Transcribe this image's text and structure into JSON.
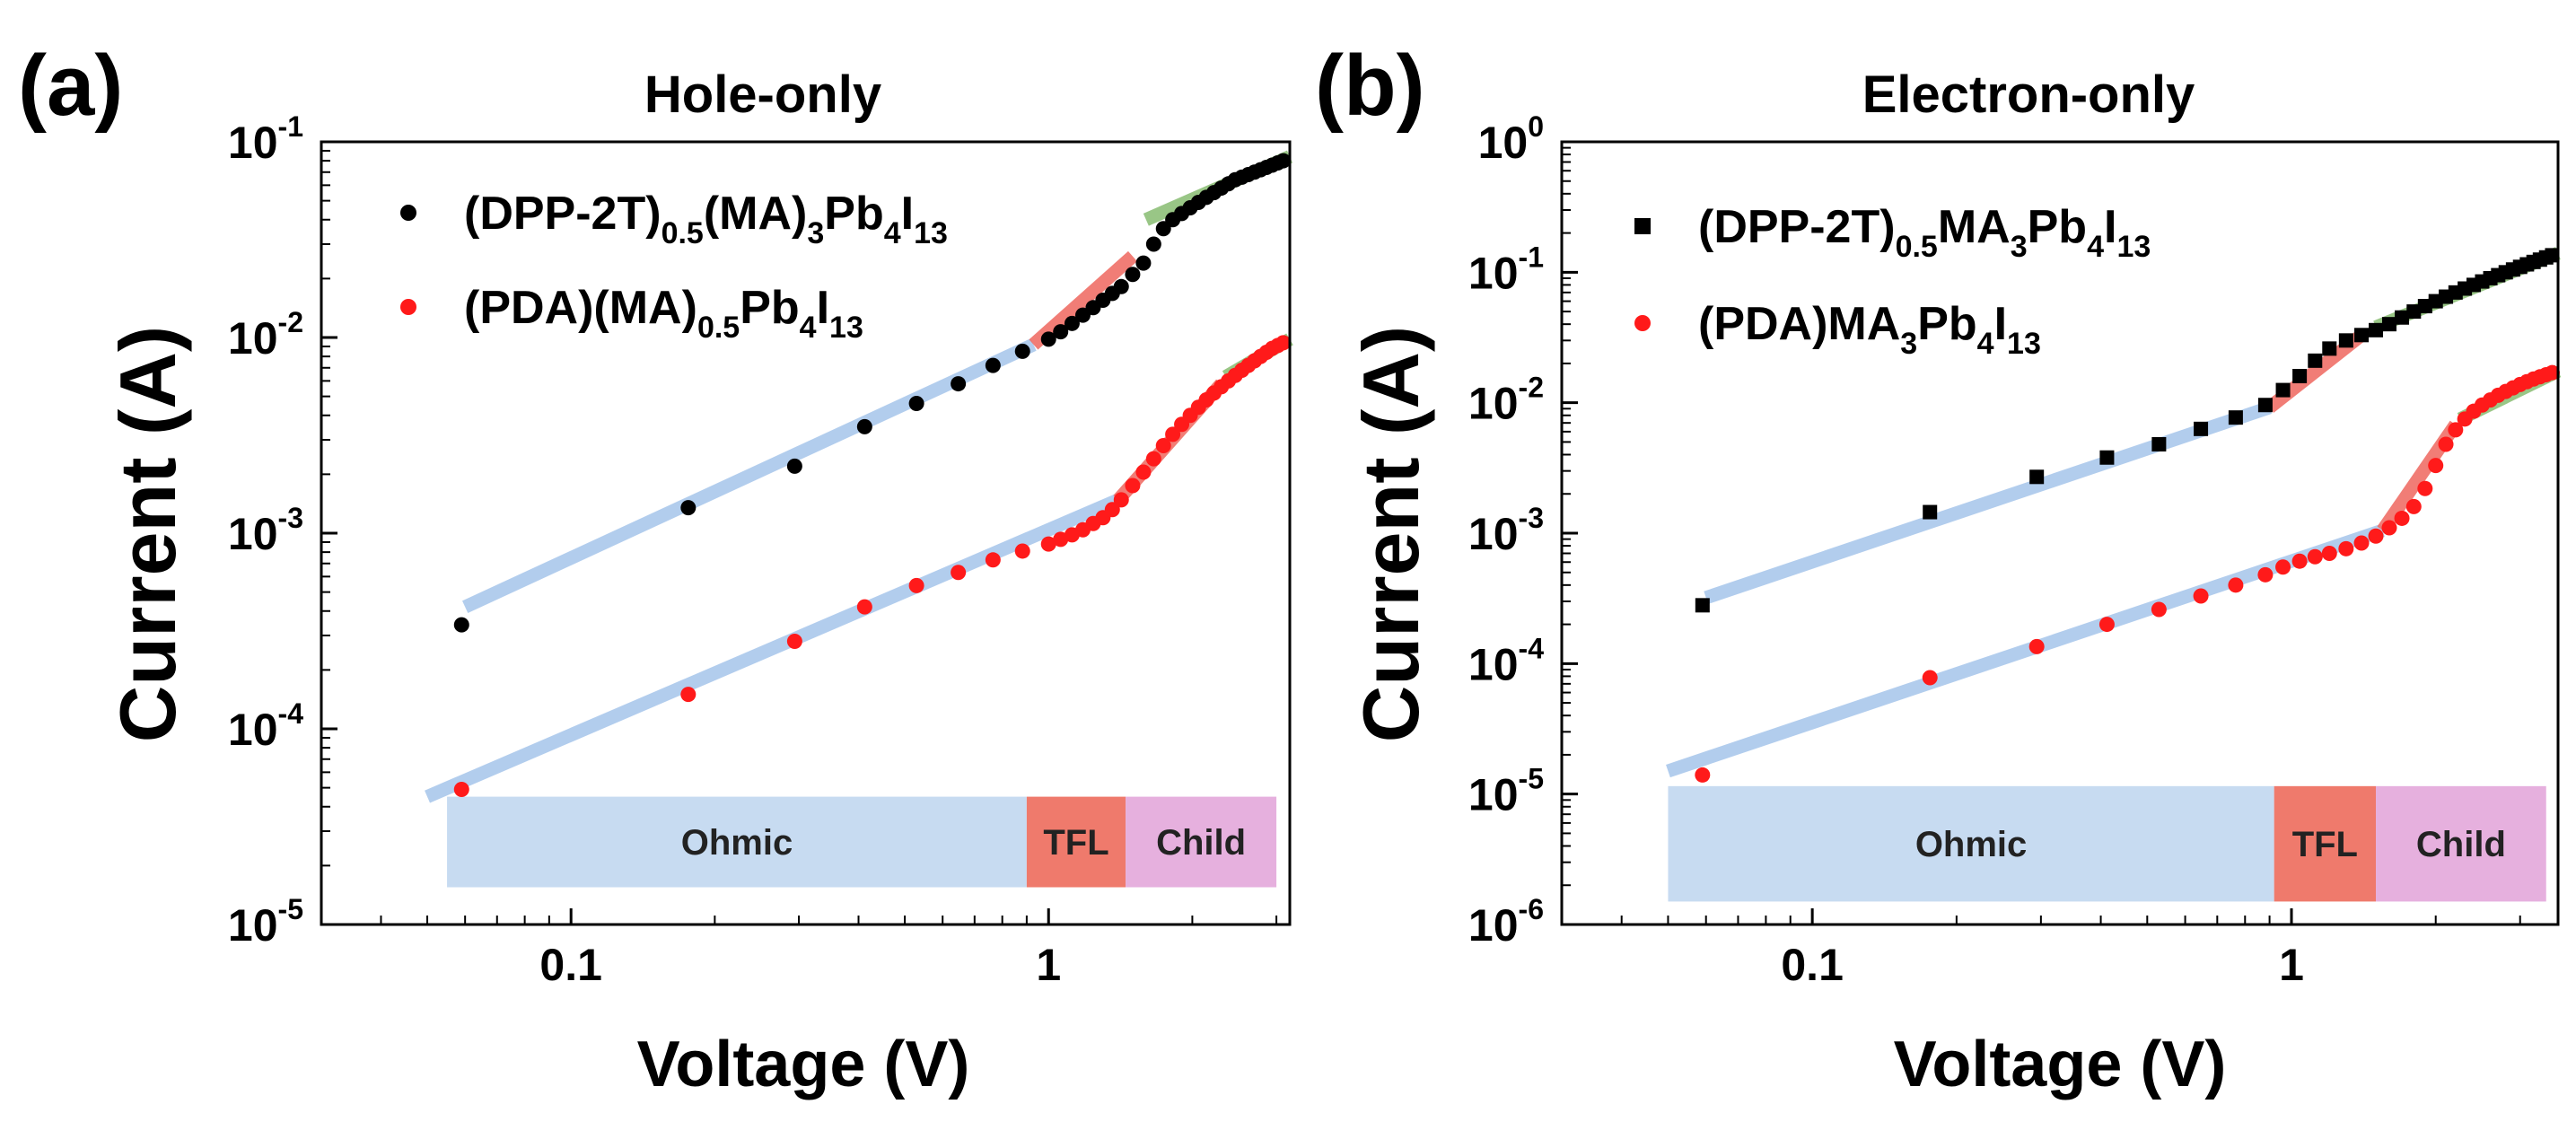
{
  "chart_data": [
    {
      "type": "scatter",
      "panel_label": "(a)",
      "title": "Hole-only",
      "xlabel": "Voltage (V)",
      "ylabel": "Current (A)",
      "xscale": "log",
      "yscale": "log",
      "xlim": [
        0.03,
        3.2
      ],
      "ylim": [
        1e-05,
        0.1
      ],
      "x_ticks": [
        {
          "value": 0.1,
          "label": "0.1"
        },
        {
          "value": 1,
          "label": "1"
        }
      ],
      "y_ticks": [
        {
          "value": 1e-05,
          "base": "10",
          "exp": "-5"
        },
        {
          "value": 0.0001,
          "base": "10",
          "exp": "-4"
        },
        {
          "value": 0.001,
          "base": "10",
          "exp": "-3"
        },
        {
          "value": 0.01,
          "base": "10",
          "exp": "-2"
        },
        {
          "value": 0.1,
          "base": "10",
          "exp": "-1"
        }
      ],
      "legend_placement": "top-left",
      "series": [
        {
          "name": "(DPP-2T)0.5(MA)3Pb4I13",
          "legend_parts": [
            {
              "t": "(DPP-2T)",
              "s": "n"
            },
            {
              "t": "0.5",
              "s": "sub"
            },
            {
              "t": "(MA)",
              "s": "n"
            },
            {
              "t": "3",
              "s": "sub"
            },
            {
              "t": "Pb",
              "s": "n"
            },
            {
              "t": "4",
              "s": "sub"
            },
            {
              "t": "I",
              "s": "n"
            },
            {
              "t": "13",
              "s": "sub"
            }
          ],
          "color": "#000000",
          "marker": "circle",
          "x": [
            0.059,
            0.176,
            0.294,
            0.412,
            0.529,
            0.647,
            0.765,
            0.882,
            1.0,
            1.06,
            1.12,
            1.18,
            1.24,
            1.3,
            1.36,
            1.42,
            1.5,
            1.58,
            1.66,
            1.74,
            1.82,
            1.9,
            1.98,
            2.06,
            2.14,
            2.22,
            2.3,
            2.38,
            2.46,
            2.54,
            2.62,
            2.7,
            2.78,
            2.86,
            2.94,
            3.02,
            3.1
          ],
          "y": [
            0.00034,
            0.00135,
            0.0022,
            0.0035,
            0.0046,
            0.0058,
            0.0072,
            0.0085,
            0.0098,
            0.0107,
            0.0118,
            0.013,
            0.0142,
            0.0155,
            0.0168,
            0.0182,
            0.021,
            0.024,
            0.03,
            0.036,
            0.04,
            0.043,
            0.046,
            0.049,
            0.052,
            0.055,
            0.058,
            0.061,
            0.064,
            0.066,
            0.068,
            0.07,
            0.072,
            0.074,
            0.076,
            0.078,
            0.08
          ]
        },
        {
          "name": "(PDA)(MA)0.5Pb4I13",
          "legend_parts": [
            {
              "t": "(PDA)(MA)",
              "s": "n"
            },
            {
              "t": "0.5",
              "s": "sub"
            },
            {
              "t": "Pb",
              "s": "n"
            },
            {
              "t": "4",
              "s": "sub"
            },
            {
              "t": "I",
              "s": "n"
            },
            {
              "t": "13",
              "s": "sub"
            }
          ],
          "color": "#ff1a1a",
          "marker": "circle",
          "x": [
            0.059,
            0.176,
            0.294,
            0.412,
            0.529,
            0.647,
            0.765,
            0.882,
            1.0,
            1.06,
            1.12,
            1.18,
            1.24,
            1.3,
            1.36,
            1.42,
            1.5,
            1.58,
            1.66,
            1.74,
            1.82,
            1.9,
            1.98,
            2.06,
            2.14,
            2.22,
            2.3,
            2.38,
            2.46,
            2.54,
            2.62,
            2.7,
            2.78,
            2.86,
            2.94,
            3.02,
            3.1
          ],
          "y": [
            4.9e-05,
            0.00015,
            0.00028,
            0.00042,
            0.00054,
            0.00063,
            0.00073,
            0.00081,
            0.00088,
            0.00093,
            0.00098,
            0.00104,
            0.00112,
            0.0012,
            0.00132,
            0.00148,
            0.00175,
            0.00205,
            0.0024,
            0.0028,
            0.0032,
            0.0036,
            0.004,
            0.0044,
            0.0048,
            0.0052,
            0.0056,
            0.006,
            0.0064,
            0.0068,
            0.0072,
            0.0076,
            0.008,
            0.0084,
            0.0088,
            0.0091,
            0.0094
          ]
        }
      ],
      "fit_lines": [
        {
          "regime": "Ohmic",
          "color": "#aac8ec",
          "x": [
            0.06,
            0.93
          ],
          "y": [
            0.00042,
            0.0092
          ]
        },
        {
          "regime": "TFL",
          "color": "#f07068",
          "x": [
            0.93,
            1.5
          ],
          "y": [
            0.0092,
            0.026
          ]
        },
        {
          "regime": "Child",
          "color": "#8fc07a",
          "x": [
            1.6,
            3.2
          ],
          "y": [
            0.04,
            0.084
          ]
        },
        {
          "regime": "Ohmic",
          "color": "#aac8ec",
          "x": [
            0.05,
            1.4
          ],
          "y": [
            4.5e-05,
            0.00148
          ]
        },
        {
          "regime": "TFL",
          "color": "#f07068",
          "x": [
            1.4,
            2.3
          ],
          "y": [
            0.00148,
            0.0058
          ]
        },
        {
          "regime": "Child",
          "color": "#8fc07a",
          "x": [
            2.35,
            3.2
          ],
          "y": [
            0.0063,
            0.0098
          ]
        }
      ],
      "regions": [
        {
          "label": "Ohmic",
          "color": "#c7dbf1",
          "x": [
            0.055,
            0.9
          ]
        },
        {
          "label": "TFL",
          "color": "#ef7a6c",
          "x": [
            0.9,
            1.45
          ]
        },
        {
          "label": "Child",
          "color": "#e6b0de",
          "x": [
            1.45,
            3.0
          ]
        }
      ],
      "region_band_y": [
        1.55e-05,
        4.5e-05
      ]
    },
    {
      "type": "scatter",
      "panel_label": "(b)",
      "title": "Electron-only",
      "xlabel": "Voltage (V)",
      "ylabel": "Current (A)",
      "xscale": "log",
      "yscale": "log",
      "xlim": [
        0.03,
        3.6
      ],
      "ylim": [
        1e-06,
        1
      ],
      "x_ticks": [
        {
          "value": 0.1,
          "label": "0.1"
        },
        {
          "value": 1,
          "label": "1"
        }
      ],
      "y_ticks": [
        {
          "value": 1e-06,
          "base": "10",
          "exp": "-6"
        },
        {
          "value": 1e-05,
          "base": "10",
          "exp": "-5"
        },
        {
          "value": 0.0001,
          "base": "10",
          "exp": "-4"
        },
        {
          "value": 0.001,
          "base": "10",
          "exp": "-3"
        },
        {
          "value": 0.01,
          "base": "10",
          "exp": "-2"
        },
        {
          "value": 0.1,
          "base": "10",
          "exp": "-1"
        },
        {
          "value": 1,
          "base": "10",
          "exp": "0"
        }
      ],
      "legend_placement": "top-left",
      "series": [
        {
          "name": "(DPP-2T)0.5MA3Pb4I13",
          "legend_parts": [
            {
              "t": "(DPP-2T)",
              "s": "n"
            },
            {
              "t": "0.5",
              "s": "sub"
            },
            {
              "t": "MA",
              "s": "n"
            },
            {
              "t": "3",
              "s": "sub"
            },
            {
              "t": "Pb",
              "s": "n"
            },
            {
              "t": "4",
              "s": "sub"
            },
            {
              "t": "I",
              "s": "n"
            },
            {
              "t": "13",
              "s": "sub"
            }
          ],
          "color": "#000000",
          "marker": "square",
          "x": [
            0.059,
            0.176,
            0.294,
            0.412,
            0.529,
            0.647,
            0.765,
            0.882,
            0.96,
            1.04,
            1.12,
            1.2,
            1.3,
            1.4,
            1.5,
            1.6,
            1.7,
            1.8,
            1.9,
            2.0,
            2.1,
            2.2,
            2.3,
            2.4,
            2.5,
            2.6,
            2.7,
            2.8,
            2.9,
            3.0,
            3.1,
            3.2,
            3.3,
            3.4,
            3.5
          ],
          "y": [
            0.00028,
            0.00145,
            0.0027,
            0.0038,
            0.0048,
            0.0063,
            0.0077,
            0.0096,
            0.0125,
            0.016,
            0.021,
            0.026,
            0.03,
            0.033,
            0.036,
            0.04,
            0.045,
            0.05,
            0.055,
            0.06,
            0.065,
            0.07,
            0.075,
            0.08,
            0.085,
            0.09,
            0.095,
            0.1,
            0.105,
            0.11,
            0.115,
            0.12,
            0.125,
            0.13,
            0.135
          ]
        },
        {
          "name": "(PDA)MA3Pb4I13",
          "legend_parts": [
            {
              "t": "(PDA)MA",
              "s": "n"
            },
            {
              "t": "3",
              "s": "sub"
            },
            {
              "t": "Pb",
              "s": "n"
            },
            {
              "t": "4",
              "s": "sub"
            },
            {
              "t": "I",
              "s": "n"
            },
            {
              "t": "13",
              "s": "sub"
            }
          ],
          "color": "#ff1a1a",
          "marker": "circle",
          "x": [
            0.059,
            0.176,
            0.294,
            0.412,
            0.529,
            0.647,
            0.765,
            0.882,
            0.96,
            1.04,
            1.12,
            1.2,
            1.3,
            1.4,
            1.5,
            1.6,
            1.7,
            1.8,
            1.9,
            2.0,
            2.1,
            2.2,
            2.3,
            2.4,
            2.5,
            2.6,
            2.7,
            2.8,
            2.9,
            3.0,
            3.1,
            3.2,
            3.3,
            3.4,
            3.5
          ],
          "y": [
            1.4e-05,
            7.8e-05,
            0.000135,
            0.0002,
            0.00026,
            0.00033,
            0.0004,
            0.00048,
            0.00055,
            0.00061,
            0.00066,
            0.0007,
            0.00076,
            0.00084,
            0.00095,
            0.0011,
            0.0013,
            0.0016,
            0.0022,
            0.0033,
            0.0048,
            0.0062,
            0.0075,
            0.0086,
            0.0096,
            0.0105,
            0.0114,
            0.0122,
            0.013,
            0.0138,
            0.0145,
            0.0152,
            0.0158,
            0.0164,
            0.017
          ]
        }
      ],
      "fit_lines": [
        {
          "regime": "Ohmic",
          "color": "#aac8ec",
          "x": [
            0.06,
            0.9
          ],
          "y": [
            0.00032,
            0.0092
          ]
        },
        {
          "regime": "TFL",
          "color": "#f07068",
          "x": [
            0.9,
            1.4
          ],
          "y": [
            0.0092,
            0.033
          ]
        },
        {
          "regime": "Child",
          "color": "#8fc07a",
          "x": [
            1.5,
            3.6
          ],
          "y": [
            0.038,
            0.14
          ]
        },
        {
          "regime": "Ohmic",
          "color": "#aac8ec",
          "x": [
            0.05,
            1.55
          ],
          "y": [
            1.5e-05,
            0.00105
          ]
        },
        {
          "regime": "TFL",
          "color": "#f07068",
          "x": [
            1.55,
            2.2
          ],
          "y": [
            0.00105,
            0.0068
          ]
        },
        {
          "regime": "Child",
          "color": "#8fc07a",
          "x": [
            2.25,
            3.6
          ],
          "y": [
            0.0075,
            0.0175
          ]
        }
      ],
      "regions": [
        {
          "label": "Ohmic",
          "color": "#c7dbf1",
          "x": [
            0.05,
            0.92
          ]
        },
        {
          "label": "TFL",
          "color": "#ef7a6c",
          "x": [
            0.92,
            1.5
          ]
        },
        {
          "label": "Child",
          "color": "#e6b0de",
          "x": [
            1.5,
            3.4
          ]
        }
      ],
      "region_band_y": [
        1.5e-06,
        1.15e-05
      ]
    }
  ]
}
